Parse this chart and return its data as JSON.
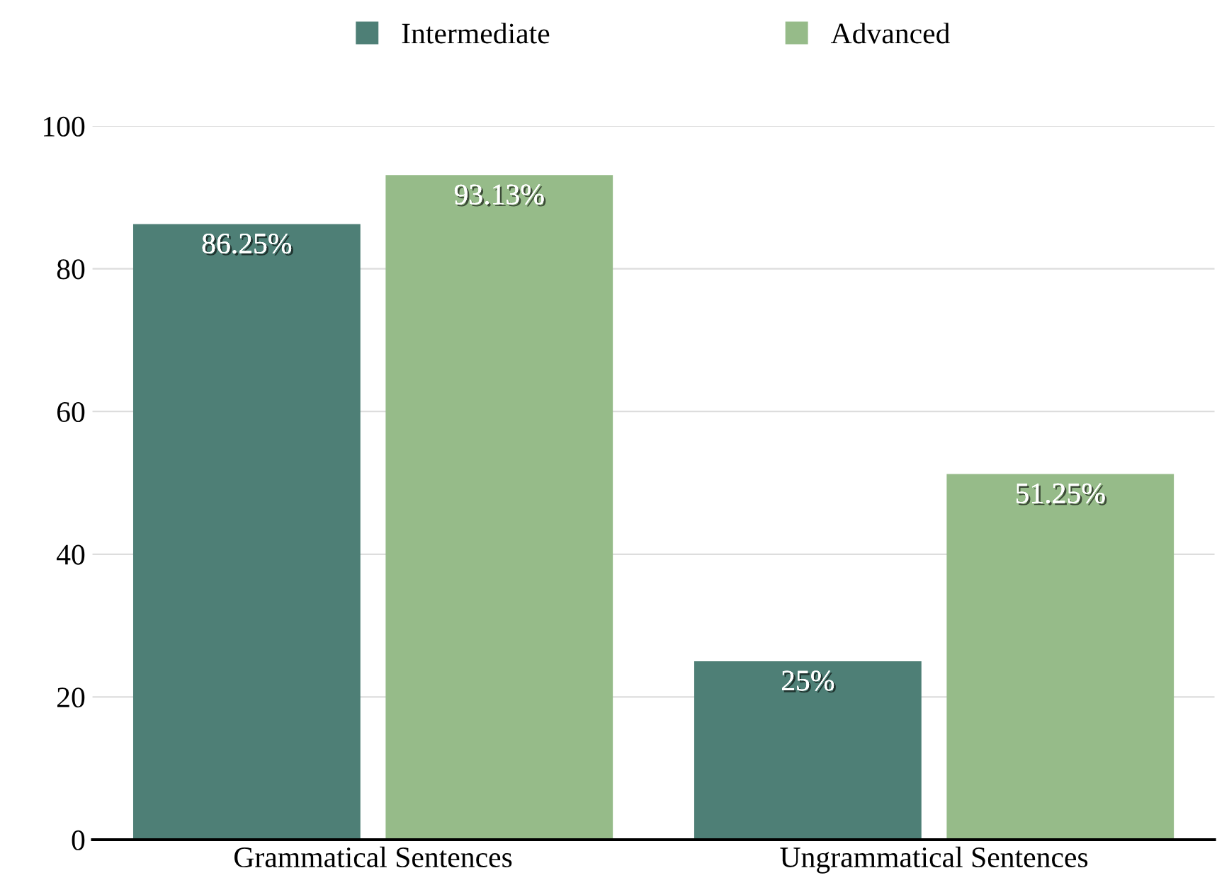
{
  "chart_data": {
    "type": "bar",
    "categories": [
      "Grammatical Sentences",
      "Ungrammatical Sentences"
    ],
    "series": [
      {
        "name": "Intermediate",
        "color": "#4e7f76",
        "values": [
          86.25,
          25
        ],
        "value_labels": [
          "86.25%",
          "25%"
        ]
      },
      {
        "name": "Advanced",
        "color": "#96bb89",
        "values": [
          93.13,
          51.25
        ],
        "value_labels": [
          "93.13%",
          "51.25%"
        ]
      }
    ],
    "ylim": [
      0,
      100
    ],
    "yticks": [
      0,
      20,
      40,
      60,
      80,
      100
    ],
    "grid": "y",
    "legend": "top"
  }
}
